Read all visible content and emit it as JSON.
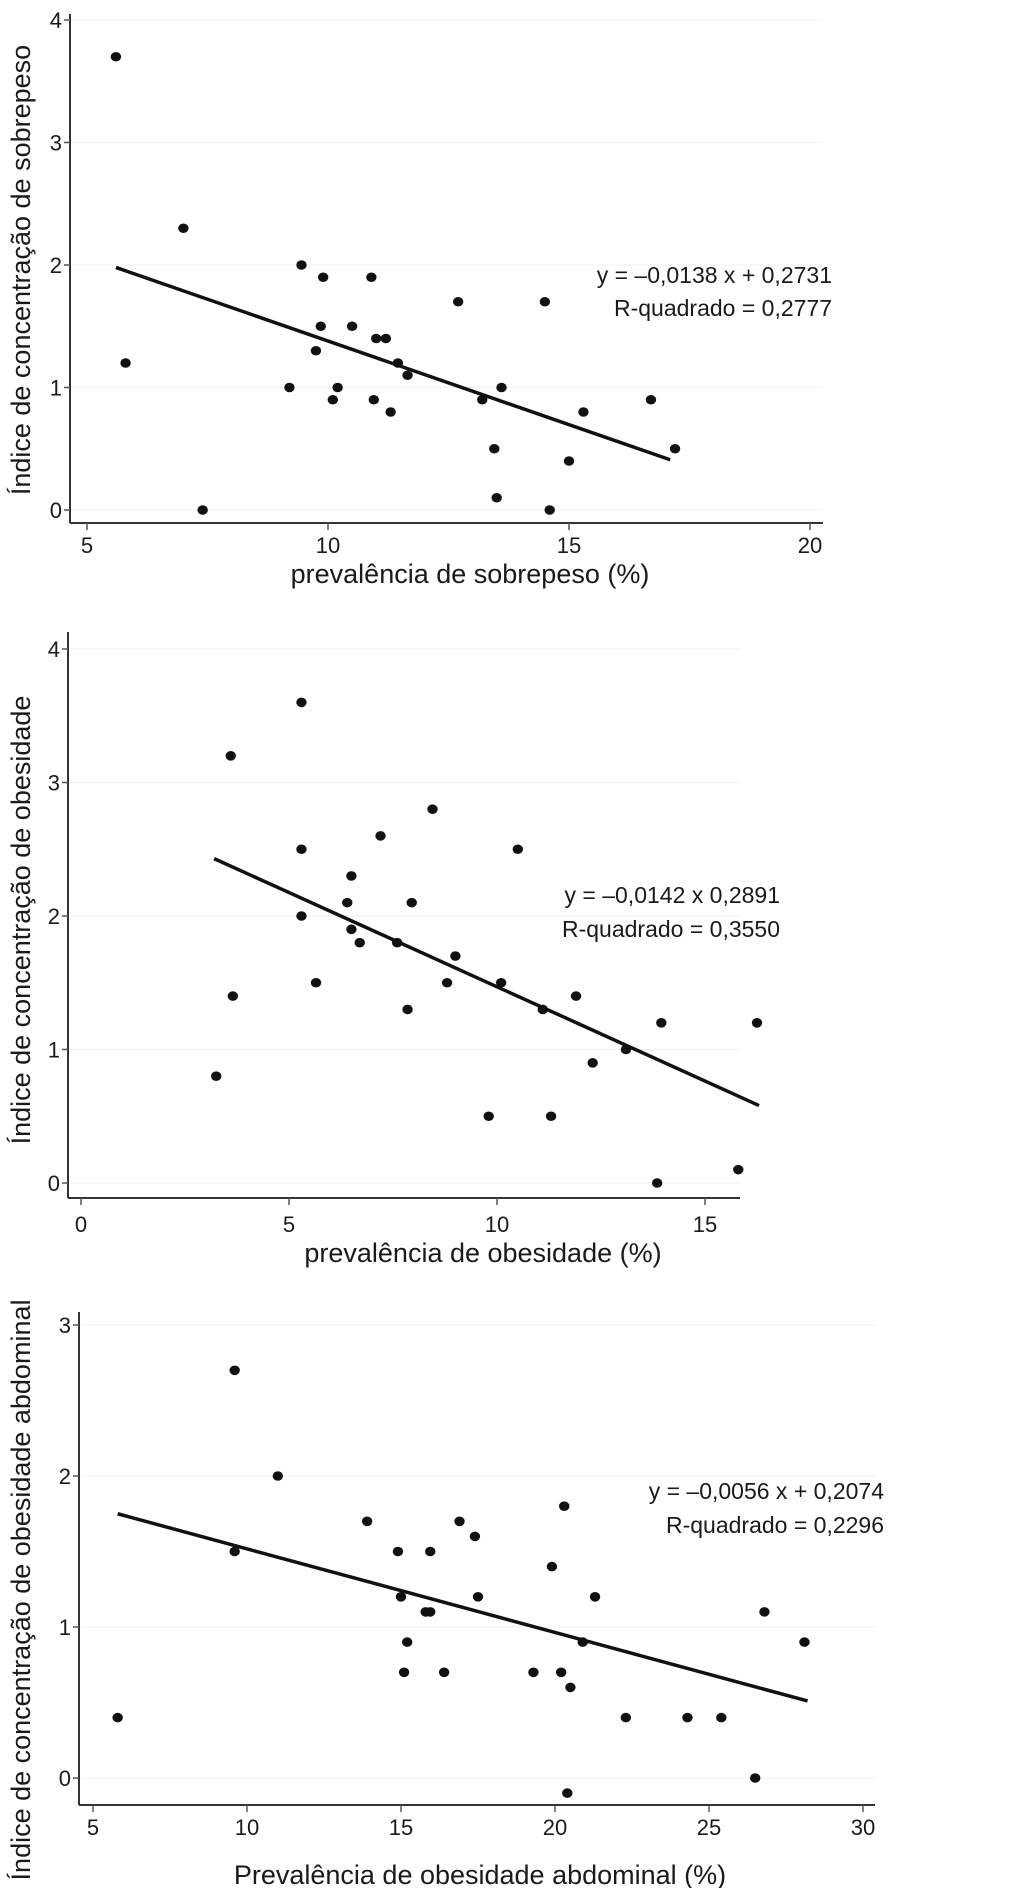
{
  "chart_data": [
    {
      "type": "scatter",
      "title": "",
      "xlabel": "prevalência de sobrepeso (%)",
      "ylabel": "Índice de concentração de sobrepeso",
      "xlim": [
        5,
        20
      ],
      "ylim": [
        0,
        4
      ],
      "xticks": [
        "5",
        "10",
        "15",
        "20"
      ],
      "yticks": [
        "0",
        "1",
        "2",
        "3",
        "4"
      ],
      "equation": "y = –0,0138 x + 0,2731",
      "r_squared": "R-quadrado = 0,2777",
      "fit_line": {
        "x": [
          5.6,
          17.1
        ],
        "y": [
          1.98,
          0.41
        ]
      },
      "points": [
        [
          5.6,
          3.7
        ],
        [
          7.0,
          2.3
        ],
        [
          5.8,
          1.2
        ],
        [
          7.4,
          0.0
        ],
        [
          9.45,
          2.0
        ],
        [
          9.9,
          1.9
        ],
        [
          10.9,
          1.9
        ],
        [
          9.85,
          1.5
        ],
        [
          10.5,
          1.5
        ],
        [
          9.75,
          1.3
        ],
        [
          11.0,
          1.4
        ],
        [
          11.2,
          1.4
        ],
        [
          11.45,
          1.2
        ],
        [
          11.65,
          1.1
        ],
        [
          9.2,
          1.0
        ],
        [
          10.2,
          1.0
        ],
        [
          10.1,
          0.9
        ],
        [
          10.95,
          0.9
        ],
        [
          11.3,
          0.8
        ],
        [
          12.7,
          1.7
        ],
        [
          14.5,
          1.7
        ],
        [
          13.2,
          0.9
        ],
        [
          13.6,
          1.0
        ],
        [
          13.45,
          0.5
        ],
        [
          13.5,
          0.1
        ],
        [
          14.6,
          0.0
        ],
        [
          15.0,
          0.4
        ],
        [
          15.3,
          0.8
        ],
        [
          16.7,
          0.9
        ],
        [
          17.2,
          0.5
        ]
      ]
    },
    {
      "type": "scatter",
      "title": "",
      "xlabel": "prevalência de obesidade (%)",
      "ylabel": "Índice de concentração de obesidade",
      "xlim": [
        0,
        16.5
      ],
      "ylim": [
        0,
        4
      ],
      "xticks": [
        "0",
        "5",
        "10",
        "15"
      ],
      "yticks": [
        "0",
        "1",
        "2",
        "3",
        "4"
      ],
      "equation": "y = –0,0142 x 0,2891",
      "r_squared": "R-quadrado = 0,3550",
      "fit_line": {
        "x": [
          3.2,
          16.3
        ],
        "y": [
          2.43,
          0.58
        ]
      },
      "points": [
        [
          5.3,
          3.6
        ],
        [
          3.6,
          3.2
        ],
        [
          8.45,
          2.8
        ],
        [
          7.2,
          2.6
        ],
        [
          5.3,
          2.5
        ],
        [
          10.5,
          2.5
        ],
        [
          6.5,
          2.3
        ],
        [
          6.4,
          2.1
        ],
        [
          7.95,
          2.1
        ],
        [
          5.3,
          2.0
        ],
        [
          6.5,
          1.9
        ],
        [
          6.7,
          1.8
        ],
        [
          7.6,
          1.8
        ],
        [
          9.0,
          1.7
        ],
        [
          5.65,
          1.5
        ],
        [
          8.8,
          1.5
        ],
        [
          10.1,
          1.5
        ],
        [
          3.65,
          1.4
        ],
        [
          11.9,
          1.4
        ],
        [
          7.85,
          1.3
        ],
        [
          11.1,
          1.3
        ],
        [
          13.95,
          1.2
        ],
        [
          16.25,
          1.2
        ],
        [
          13.1,
          1.0
        ],
        [
          12.3,
          0.9
        ],
        [
          3.25,
          0.8
        ],
        [
          9.8,
          0.5
        ],
        [
          11.3,
          0.5
        ],
        [
          13.85,
          0.0
        ],
        [
          15.8,
          0.1
        ]
      ]
    },
    {
      "type": "scatter",
      "title": "",
      "xlabel": "Prevalência de obesidade abdominal (%)",
      "ylabel": "Índice de concentração de obesidade abdominal",
      "xlim": [
        5,
        30
      ],
      "ylim": [
        -0.1,
        3
      ],
      "xticks": [
        "5",
        "10",
        "15",
        "20",
        "25",
        "30"
      ],
      "yticks": [
        "0",
        "1",
        "2",
        "3"
      ],
      "equation": "y = –0,0056 x + 0,2074",
      "r_squared": "R-quadrado = 0,2296",
      "fit_line": {
        "x": [
          5.8,
          28.2
        ],
        "y": [
          1.75,
          0.51
        ]
      },
      "points": [
        [
          9.6,
          2.7
        ],
        [
          11.0,
          2.0
        ],
        [
          20.3,
          1.8
        ],
        [
          13.9,
          1.7
        ],
        [
          16.9,
          1.7
        ],
        [
          17.4,
          1.6
        ],
        [
          9.6,
          1.5
        ],
        [
          14.9,
          1.5
        ],
        [
          15.95,
          1.5
        ],
        [
          19.9,
          1.4
        ],
        [
          15.0,
          1.2
        ],
        [
          17.5,
          1.2
        ],
        [
          21.3,
          1.2
        ],
        [
          15.8,
          1.1
        ],
        [
          15.95,
          1.1
        ],
        [
          26.8,
          1.1
        ],
        [
          15.2,
          0.9
        ],
        [
          20.9,
          0.9
        ],
        [
          28.1,
          0.9
        ],
        [
          15.1,
          0.7
        ],
        [
          16.4,
          0.7
        ],
        [
          19.3,
          0.7
        ],
        [
          20.2,
          0.7
        ],
        [
          20.5,
          0.6
        ],
        [
          5.8,
          0.4
        ],
        [
          22.3,
          0.4
        ],
        [
          24.3,
          0.4
        ],
        [
          25.4,
          0.4
        ],
        [
          26.5,
          0.0
        ],
        [
          20.4,
          -0.1
        ]
      ]
    }
  ]
}
